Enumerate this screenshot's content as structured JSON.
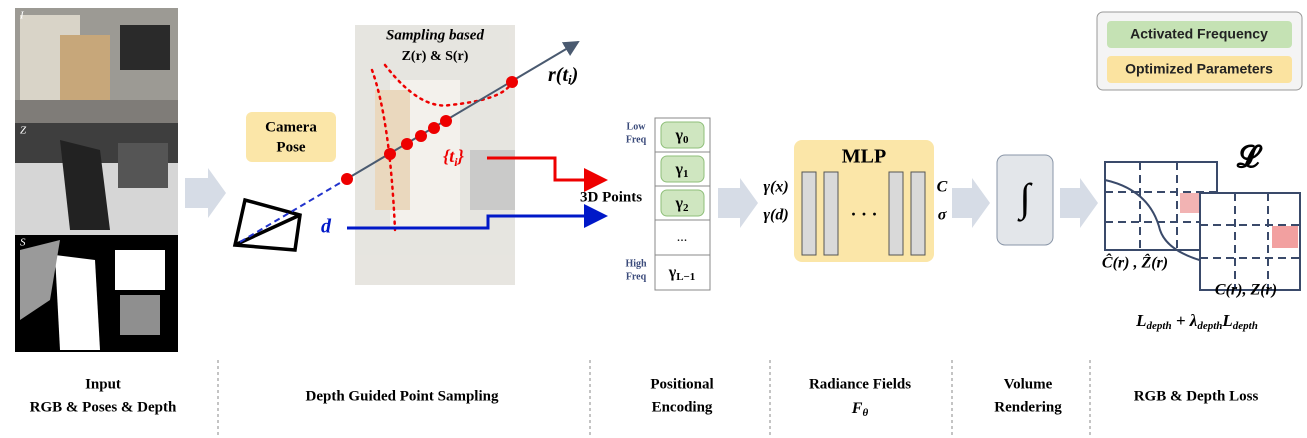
{
  "legend": {
    "activated": "Activated Frequency",
    "optimized": "Optimized Parameters"
  },
  "input": {
    "labels": [
      "I",
      "Z",
      "S"
    ]
  },
  "sampling": {
    "title": "Sampling based",
    "subtitle": "Z(r) & S(r)",
    "ray": {
      "base": "r(t",
      "sub": "i",
      "end": ")"
    },
    "samples": {
      "base": "{t",
      "sub": "i",
      "end": "}"
    },
    "direction": "d",
    "camera_pose": [
      "Camera",
      "Pose"
    ],
    "points": "3D Points"
  },
  "encoding": {
    "low": [
      "Low",
      "Freq"
    ],
    "high": [
      "High",
      "Freq"
    ],
    "cells": [
      {
        "base": "γ",
        "sub": "0"
      },
      {
        "base": "γ",
        "sub": "1"
      },
      {
        "base": "γ",
        "sub": "2"
      }
    ],
    "ellipsis": "...",
    "last": {
      "base": "γ",
      "sub": "L−1"
    }
  },
  "mlp": {
    "inputs": [
      "γ(x)",
      "γ(d)"
    ],
    "title": "MLP",
    "dots": "· · ·",
    "outputs": [
      "C",
      "σ"
    ]
  },
  "render": {
    "symbol": "∫"
  },
  "loss": {
    "symbol": "𝓛",
    "pred": "Ĉ(r) , Ẑ(r)",
    "gt": "C(r), Z(r)",
    "formula": {
      "t1": "L",
      "s1": "depth",
      "op": " + ",
      "t2": "λ",
      "s2": "depth",
      "t3": "L",
      "s3": "depth"
    }
  },
  "stages": {
    "input": [
      "Input",
      "RGB & Poses & Depth"
    ],
    "sampling": "Depth Guided Point Sampling",
    "encoding": [
      "Positional",
      "Encoding"
    ],
    "radiance": {
      "label": "Radiance Fields",
      "symbol": {
        "base": "F",
        "sub": "θ"
      }
    },
    "volume": [
      "Volume",
      "Rendering"
    ],
    "loss": "RGB & Depth Loss"
  }
}
